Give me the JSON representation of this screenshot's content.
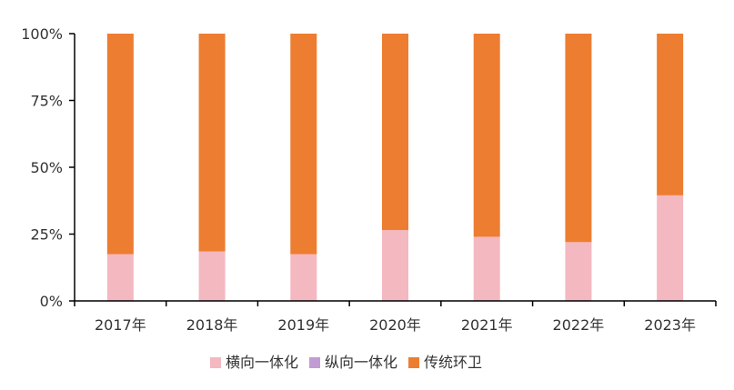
{
  "chart_data": {
    "type": "bar",
    "stacked": true,
    "categories": [
      "2017年",
      "2018年",
      "2019年",
      "2020年",
      "2021年",
      "2022年",
      "2023年"
    ],
    "series": [
      {
        "name": "横向一体化",
        "color": "#f4b8c1",
        "values": [
          17.5,
          18.5,
          17.5,
          26.5,
          24,
          22,
          39.5
        ]
      },
      {
        "name": "纵向一体化",
        "color": "#c39bd3",
        "values": [
          0,
          0,
          0,
          0,
          0,
          0,
          0
        ]
      },
      {
        "name": "传统环卫",
        "color": "#ed7d31",
        "values": [
          82.5,
          81.5,
          82.5,
          73.5,
          76,
          78,
          60.5
        ]
      }
    ],
    "ylim": [
      0,
      100
    ],
    "yticks": [
      "0%",
      "25%",
      "50%",
      "75%",
      "100%"
    ],
    "xlabel": "",
    "ylabel": "",
    "grid": false,
    "legend_position": "bottom"
  }
}
